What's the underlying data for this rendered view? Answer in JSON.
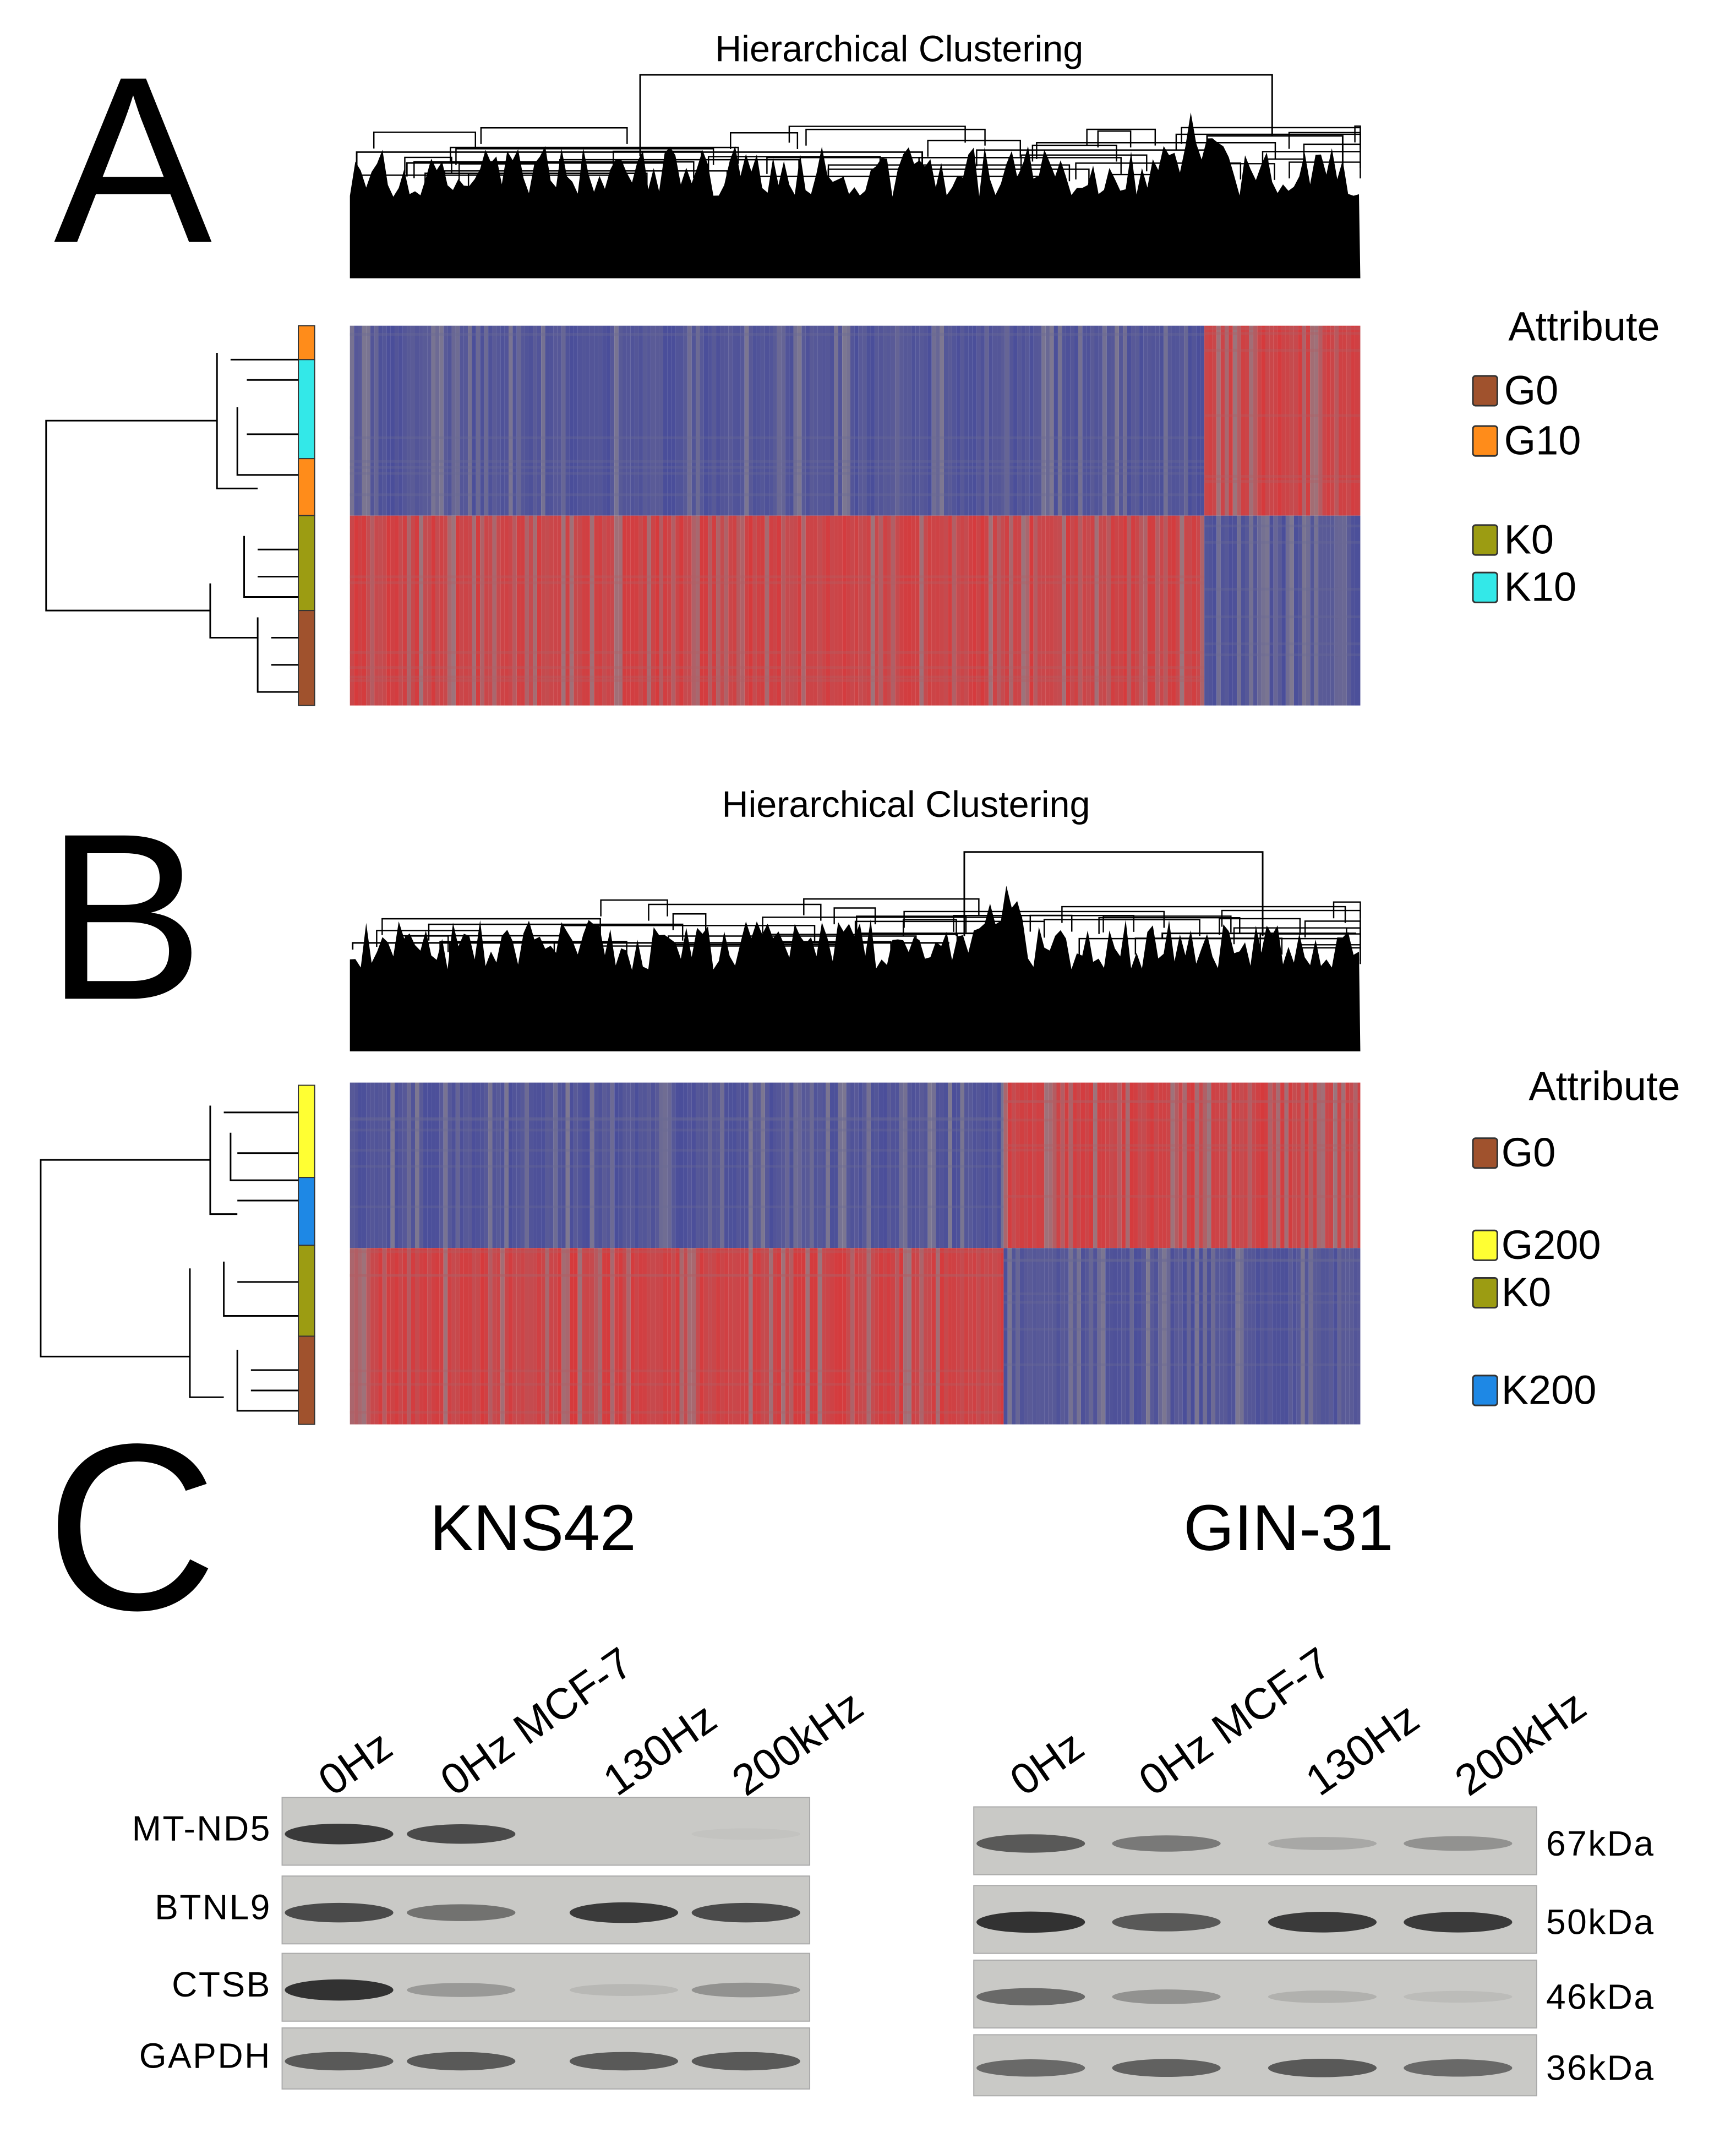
{
  "panel_a": {
    "label": "A",
    "title": "Hierarchical Clustering",
    "legend": {
      "title": "Attribute",
      "items": [
        {
          "label": "G0",
          "color": "#a0522d"
        },
        {
          "label": "G10",
          "color": "#ff8c1a"
        },
        {
          "label": "K0",
          "color": "#9c9c12"
        },
        {
          "label": "K10",
          "color": "#33e8e8"
        }
      ]
    }
  },
  "panel_b": {
    "label": "B",
    "title": "Hierarchical Clustering",
    "legend": {
      "title": "Attribute",
      "items": [
        {
          "label": "G0",
          "color": "#a0522d"
        },
        {
          "label": "G200",
          "color": "#ffff33"
        },
        {
          "label": "K0",
          "color": "#9c9c12"
        },
        {
          "label": "K200",
          "color": "#1e88e5"
        }
      ]
    }
  },
  "panel_c": {
    "label": "C",
    "blots": [
      {
        "title": "KNS42",
        "lanes": [
          "0Hz",
          "0Hz MCF-7",
          "130Hz",
          "200kHz"
        ],
        "rows": [
          "MT-ND5",
          "BTNL9",
          "CTSB",
          "GAPDH"
        ]
      },
      {
        "title": "GIN-31",
        "lanes": [
          "0Hz",
          "0Hz MCF-7",
          "130Hz",
          "200kHz"
        ],
        "sizes": [
          "67kDa",
          "50kDa",
          "46kDa",
          "36kDa"
        ]
      }
    ]
  }
}
